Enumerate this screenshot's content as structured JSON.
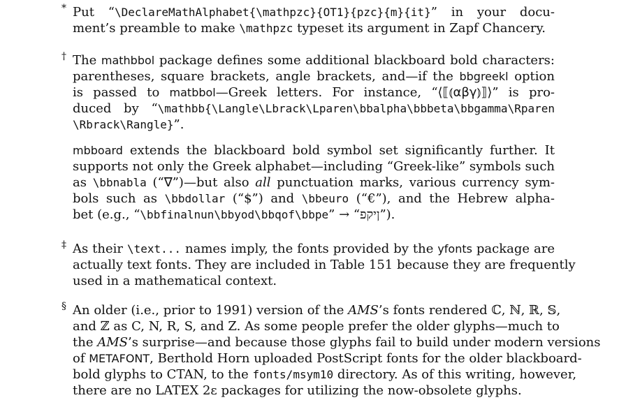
{
  "footnotes": [
    {
      "mark": "*",
      "lines": [
        [
          {
            "t": "Put “"
          },
          {
            "t": "\\DeclareMathAlphabet{\\mathpzc}{OT1}{pzc}{m}{it}",
            "s": "tt"
          },
          {
            "t": "” in your docu-"
          }
        ],
        [
          {
            "t": "ment’s preamble to make "
          },
          {
            "t": "\\mathpzc",
            "s": "tt"
          },
          {
            "t": " typeset its argument in Zapf Chancery."
          }
        ]
      ]
    },
    {
      "mark": "†",
      "lines": [
        [
          {
            "t": "The "
          },
          {
            "t": "mathbbol",
            "s": "sf"
          },
          {
            "t": " package defines some additional blackboard bold characters:"
          }
        ],
        [
          {
            "t": "parentheses, square brackets, angle brackets, and—if the "
          },
          {
            "t": "bbgreekl",
            "s": "sf"
          },
          {
            "t": " option"
          }
        ],
        [
          {
            "t": "is passed to "
          },
          {
            "t": "matbbol",
            "s": "sf"
          },
          {
            "t": "—Greek letters.   For instance, “"
          },
          {
            "t": "⟨⟦⦅αβγ⦆⟧⟩",
            "s": "bb"
          },
          {
            "t": "” is pro-"
          }
        ],
        [
          {
            "t": "duced by “"
          },
          {
            "t": "\\mathbb{\\Langle\\Lbrack\\Lparen\\bbalpha\\bbbeta\\bbgamma\\Rparen",
            "s": "tt"
          }
        ],
        [
          {
            "t": "\\Rbrack\\Rangle}",
            "s": "tt"
          },
          {
            "t": "”."
          }
        ]
      ],
      "gap_after": true,
      "extra_lines": [
        [
          {
            "t": "mbboard",
            "s": "sf"
          },
          {
            "t": " extends the blackboard bold symbol set significantly further.  It"
          }
        ],
        [
          {
            "t": "supports not only the Greek alphabet—including “Greek-like” symbols such"
          }
        ],
        [
          {
            "t": "as "
          },
          {
            "t": "\\bbnabla",
            "s": "tt"
          },
          {
            "t": " (“"
          },
          {
            "t": "∇",
            "s": "bb"
          },
          {
            "t": "”)—but also "
          },
          {
            "t": "all",
            "s": "it"
          },
          {
            "t": " punctuation marks, various currency sym-"
          }
        ],
        [
          {
            "t": "bols such as "
          },
          {
            "t": "\\bbdollar",
            "s": "tt"
          },
          {
            "t": " (“$”) and "
          },
          {
            "t": "\\bbeuro",
            "s": "tt"
          },
          {
            "t": " (“€”), and the Hebrew alpha-"
          }
        ],
        [
          {
            "t": "bet (e.g., “"
          },
          {
            "t": "\\bbfinalnun\\bbyod\\bbqof\\bbpe",
            "s": "tt"
          },
          {
            "t": "” → “ןיקפ”)."
          }
        ]
      ]
    },
    {
      "mark": "‡",
      "lines": [
        [
          {
            "t": "As their "
          },
          {
            "t": "\\text...",
            "s": "tt"
          },
          {
            "t": " names imply, the fonts provided by the "
          },
          {
            "t": "yfonts",
            "s": "sf"
          },
          {
            "t": " package are"
          }
        ],
        [
          {
            "t": "actually text fonts. They are included in Table 151 because they are frequently"
          }
        ],
        [
          {
            "t": "used in a mathematical context.",
            "last": true
          }
        ]
      ]
    },
    {
      "mark": "§",
      "lines": [
        [
          {
            "t": "An older (i.e., prior to 1991) version of the "
          },
          {
            "t": "AMS",
            "s": "it"
          },
          {
            "t": "’s fonts rendered ℂ, ℕ, ℝ, 𝕊,"
          }
        ],
        [
          {
            "t": "and ℤ as C, N, R, S, and Z. As some people prefer the older glyphs—much to"
          }
        ],
        [
          {
            "t": "the "
          },
          {
            "t": "AMS",
            "s": "it"
          },
          {
            "t": "’s surprise—and because those glyphs fail to build under modern versions"
          }
        ],
        [
          {
            "t": "of "
          },
          {
            "t": "METAFONT",
            "s": "sf"
          },
          {
            "t": ", Berthold Horn uploaded PostScript fonts for the older blackboard-"
          }
        ],
        [
          {
            "t": "bold glyphs to CTAN, to the "
          },
          {
            "t": "fonts/msym10",
            "s": "tt"
          },
          {
            "t": " directory. As of this writing, however,"
          }
        ],
        [
          {
            "t": "there are no LATEX 2ε packages for utilizing the now-obsolete glyphs.",
            "last": true
          }
        ]
      ]
    }
  ]
}
